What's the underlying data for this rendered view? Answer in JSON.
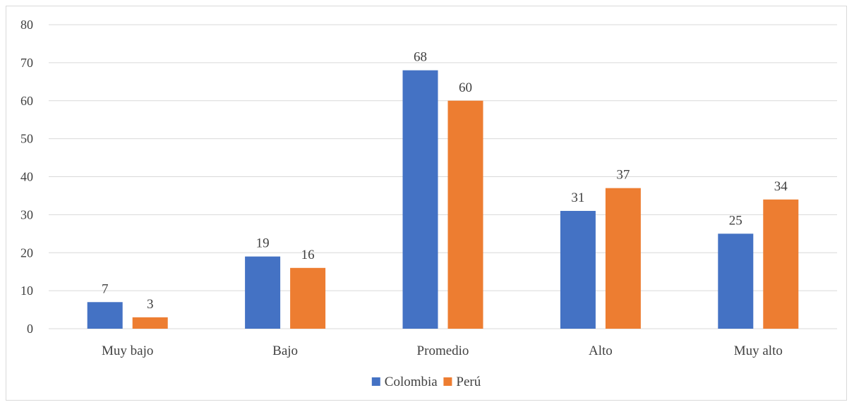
{
  "chart_data": {
    "type": "bar",
    "categories": [
      "Muy bajo",
      "Bajo",
      "Promedio",
      "Alto",
      "Muy alto"
    ],
    "series": [
      {
        "name": "Colombia",
        "values": [
          7,
          19,
          68,
          31,
          25
        ],
        "color": "#4472c4"
      },
      {
        "name": "Perú",
        "values": [
          3,
          16,
          60,
          37,
          34
        ],
        "color": "#ed7d31"
      }
    ],
    "ylim": [
      0,
      80
    ],
    "yticks": [
      0,
      10,
      20,
      30,
      40,
      50,
      60,
      70,
      80
    ],
    "grid": true,
    "legend_position": "bottom",
    "data_labels": true
  }
}
